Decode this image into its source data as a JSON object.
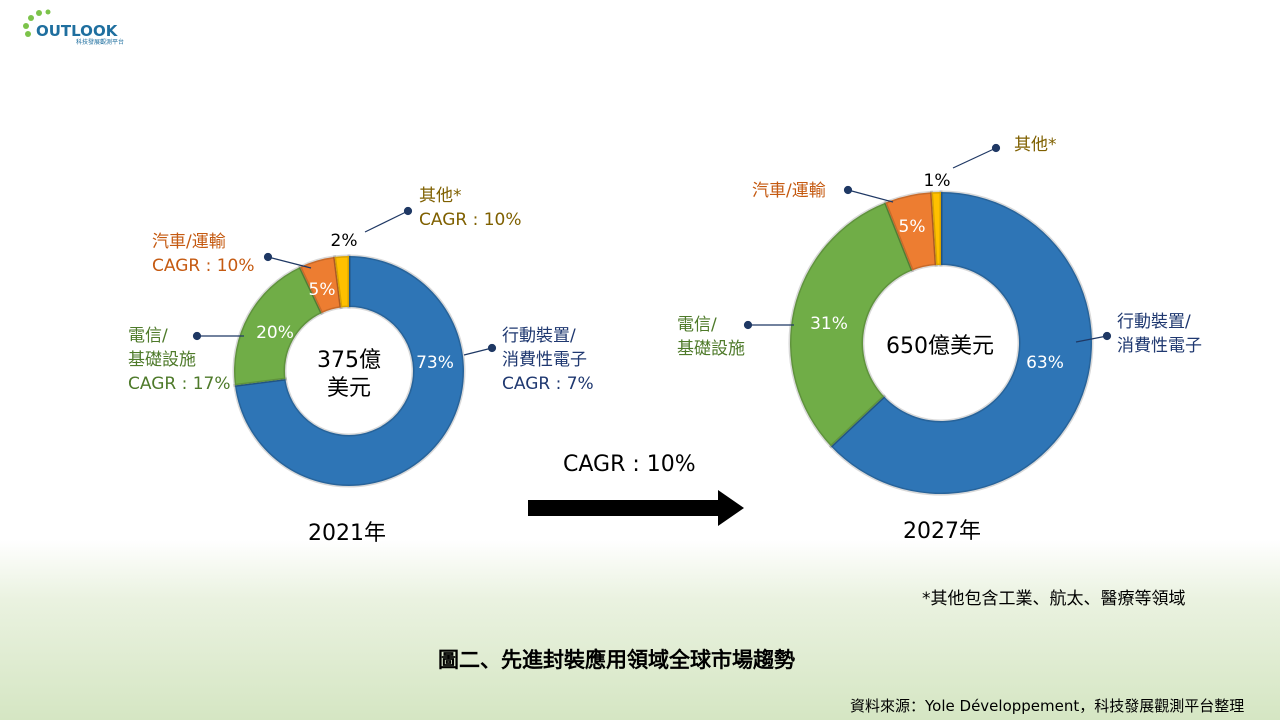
{
  "logo": {
    "name": "OUTLOOK",
    "sub": "科技發展觀測平台"
  },
  "colors": {
    "mobile": "#2e75b6",
    "telecom": "#70ad47",
    "auto": "#ed7d31",
    "other": "#ffc000"
  },
  "chart_data": [
    {
      "type": "pie",
      "variant": "donut",
      "year_label": "2021年",
      "center": [
        "375億",
        "美元"
      ],
      "categories": [
        "行動裝置/消費性電子",
        "電信/基礎設施",
        "汽車/運輸",
        "其他*"
      ],
      "values": [
        73,
        20,
        5,
        2
      ],
      "cagr": [
        "CAGR : 7%",
        "CAGR : 17%",
        "CAGR : 10%",
        "CAGR : 10%"
      ],
      "labels": [
        "73%",
        "20%",
        "5%",
        "2%"
      ]
    },
    {
      "type": "pie",
      "variant": "donut",
      "year_label": "2027年",
      "center": [
        "650億美元"
      ],
      "categories": [
        "行動裝置/消費性電子",
        "電信/基礎設施",
        "汽車/運輸",
        "其他*"
      ],
      "values": [
        63,
        31,
        5,
        1
      ],
      "labels": [
        "63%",
        "31%",
        "5%",
        "1%"
      ]
    }
  ],
  "legend_text": {
    "mobile": [
      "行動裝置/",
      "消費性電子"
    ],
    "telecom": [
      "電信/",
      "基礎設施"
    ],
    "auto": "汽車/運輸",
    "other": "其他*"
  },
  "arrow_label": "CAGR : 10%",
  "footnote": "*其他包含工業、航太、醫療等領域",
  "title": "圖二、先進封裝應用領域全球市場趨勢",
  "source": "資料來源：Yole Développement，科技發展觀測平台整理"
}
